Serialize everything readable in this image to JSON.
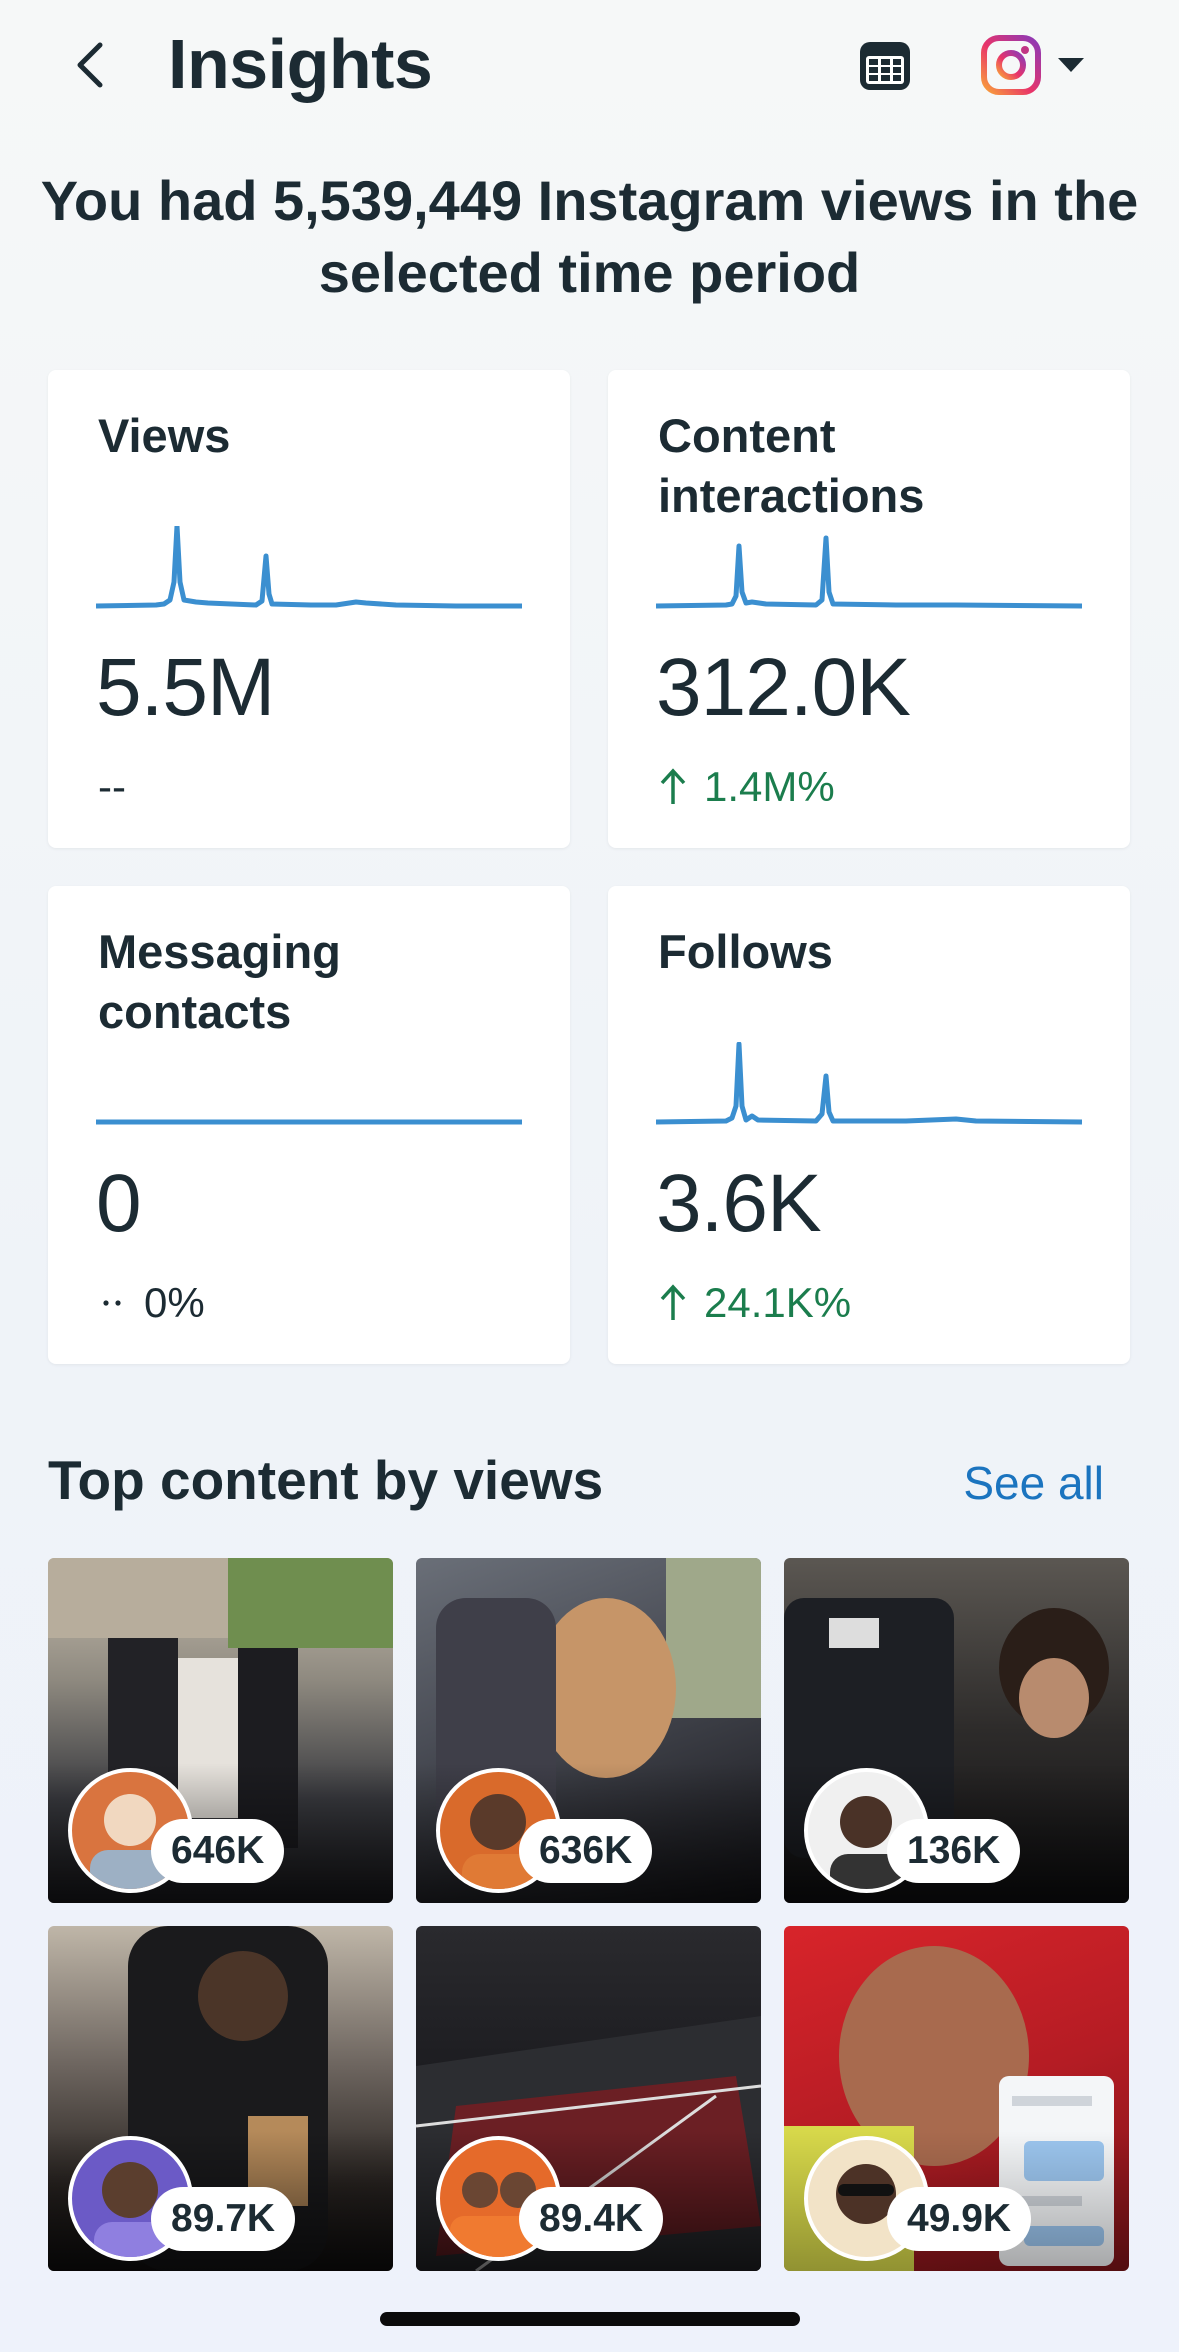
{
  "header": {
    "title": "Insights",
    "back_icon": "chevron-left-icon",
    "calendar_icon": "calendar-icon",
    "account_icon": "instagram-icon",
    "dropdown_icon": "caret-down-icon"
  },
  "summary": {
    "headline": "You had 5,539,449 Instagram views in the selected time period"
  },
  "metrics": [
    {
      "label": "Views",
      "value": "5.5M",
      "delta": "--",
      "trend": "none"
    },
    {
      "label": "Content interactions",
      "value": "312.0K",
      "delta": "1.4M%",
      "trend": "up"
    },
    {
      "label": "Messaging contacts",
      "value": "0",
      "delta": "0%",
      "trend": "flat"
    },
    {
      "label": "Follows",
      "value": "3.6K",
      "delta": "24.1K%",
      "trend": "up"
    }
  ],
  "top_content": {
    "title": "Top content by views",
    "see_all_label": "See all",
    "items": [
      {
        "views": "646K"
      },
      {
        "views": "636K"
      },
      {
        "views": "136K"
      },
      {
        "views": "89.7K"
      },
      {
        "views": "89.4K"
      },
      {
        "views": "49.9K"
      }
    ]
  },
  "colors": {
    "accent_blue": "#1b74bf",
    "spark_blue": "#3b8fd0",
    "positive_green": "#1b7d4d",
    "text_primary": "#1c2b33"
  }
}
